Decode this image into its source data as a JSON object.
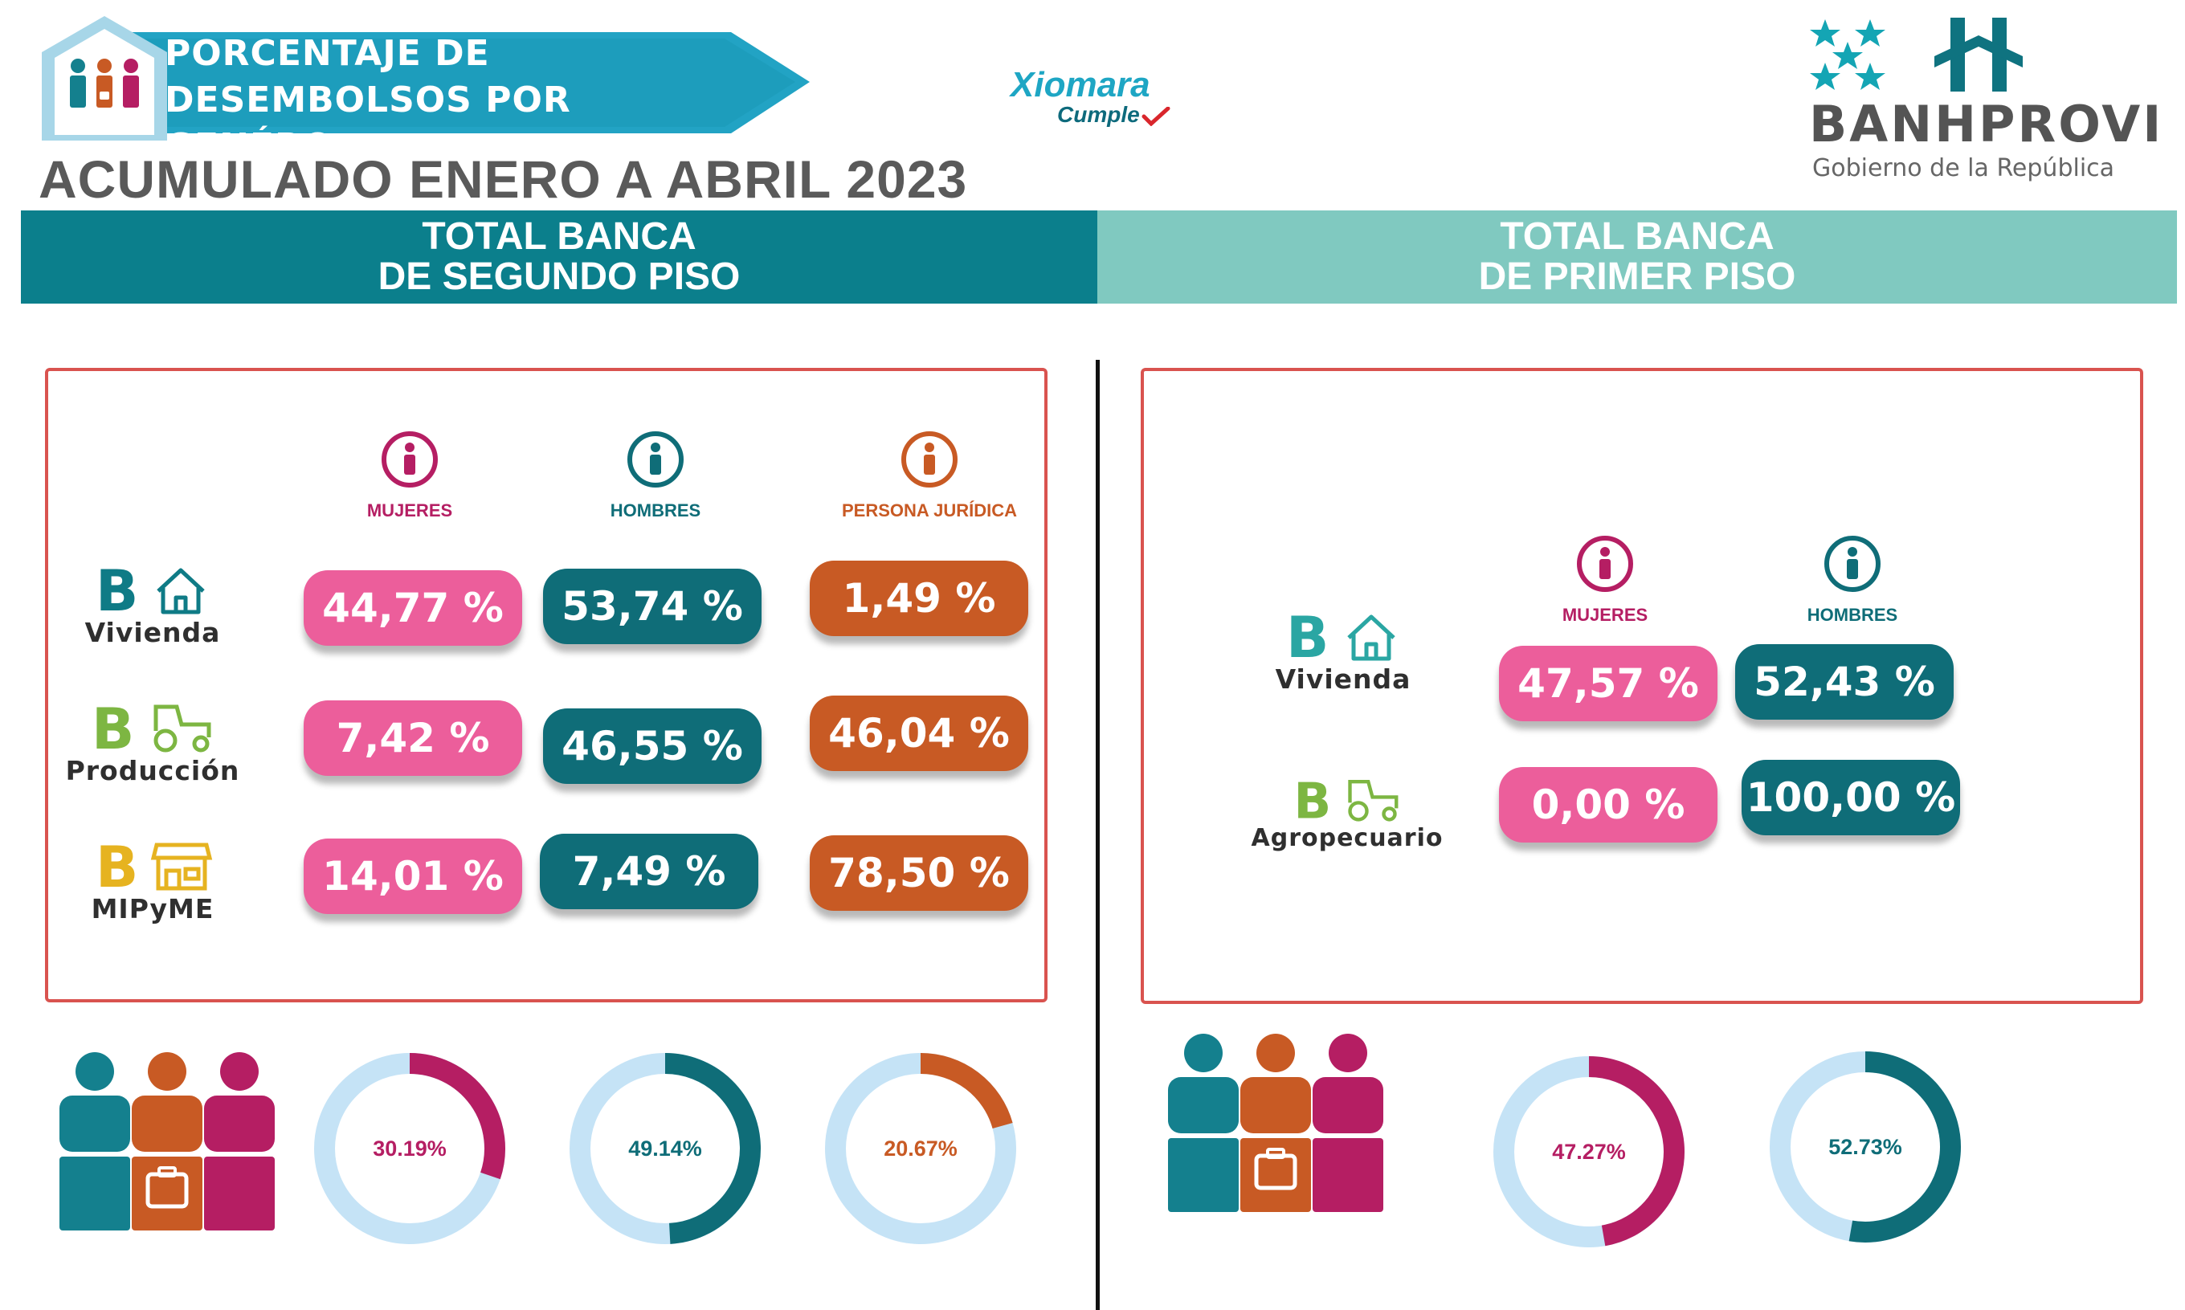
{
  "header": {
    "banner_line1": "PORCENTAJE DE",
    "banner_line2": "DESEMBOLSOS POR GENÉRO",
    "subtitle": "ACUMULADO ENERO A ABRIL 2023",
    "xiomara_line1": "Xiomara",
    "xiomara_line2": "Cumple",
    "logo_name": "BANHPROVI",
    "logo_subtitle": "Gobierno de la República"
  },
  "sections": {
    "left_line1": "TOTAL BANCA",
    "left_line2": "DE SEGUNDO PISO",
    "right_line1": "TOTAL BANCA",
    "right_line2": "DE PRIMER PISO"
  },
  "colors": {
    "mujeres": "#b51e63",
    "hombres": "#0f6d78",
    "juridica": "#c85a24",
    "pill_pink": "#ec5e9b",
    "track": "#c5e3f6"
  },
  "chart_data": [
    {
      "type": "table",
      "title": "TOTAL BANCA DE SEGUNDO PISO",
      "columns": [
        "MUJERES",
        "HOMBRES",
        "PERSONA JURÍDICA"
      ],
      "rows": [
        {
          "label": "Vivienda",
          "values": [
            "44,77 %",
            "53,74 %",
            "1,49 %"
          ]
        },
        {
          "label": "Producción",
          "values": [
            "7,42 %",
            "46,55 %",
            "46,04 %"
          ]
        },
        {
          "label": "MIPyME",
          "values": [
            "14,01 %",
            "7,49 %",
            "78,50 %"
          ]
        }
      ]
    },
    {
      "type": "table",
      "title": "TOTAL BANCA DE PRIMER PISO",
      "columns": [
        "MUJERES",
        "HOMBRES"
      ],
      "rows": [
        {
          "label": "Vivienda",
          "values": [
            "47,57 %",
            "52,43 %"
          ]
        },
        {
          "label": "Agropecuario",
          "values": [
            "0,00 %",
            "100,00 %"
          ]
        }
      ]
    },
    {
      "type": "pie",
      "title": "Segundo piso",
      "slices": [
        {
          "name": "Mujeres",
          "value": 30.19,
          "label": "30.19%",
          "color": "#b51e63"
        },
        {
          "name": "Hombres",
          "value": 49.14,
          "label": "49.14%",
          "color": "#0f6d78"
        },
        {
          "name": "Persona Jurídica",
          "value": 20.67,
          "label": "20.67%",
          "color": "#c85a24"
        }
      ]
    },
    {
      "type": "pie",
      "title": "Primer piso",
      "slices": [
        {
          "name": "Mujeres",
          "value": 47.27,
          "label": "47.27%",
          "color": "#b51e63"
        },
        {
          "name": "Hombres",
          "value": 52.73,
          "label": "52.73%",
          "color": "#0f6d78"
        }
      ]
    }
  ]
}
